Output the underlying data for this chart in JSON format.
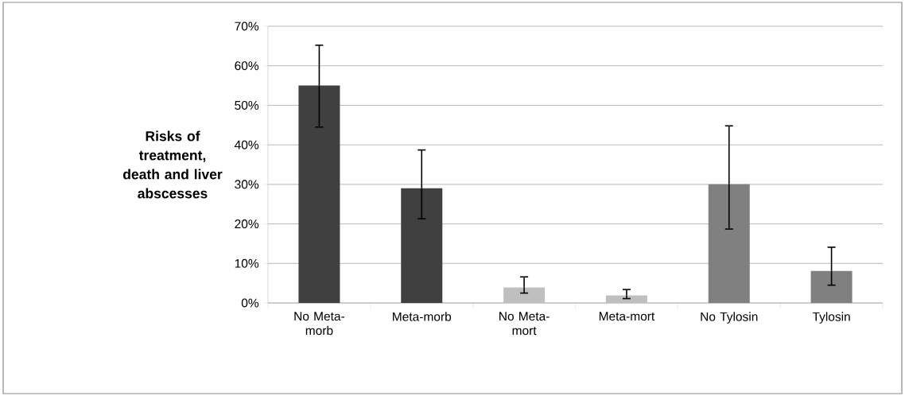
{
  "chart_data": {
    "type": "bar",
    "ylabel": "Risks of treatment, death and liver abscesses",
    "categories": [
      "No Meta-morb",
      "Meta-morb",
      "No Meta-mort",
      "Meta-mort",
      "No Tylosin",
      "Tylosin"
    ],
    "values": [
      55,
      29,
      3.9,
      1.9,
      30,
      8.1
    ],
    "colors": [
      "#404040",
      "#404040",
      "#bfbfbf",
      "#bfbfbf",
      "#808080",
      "#808080"
    ],
    "errors": [
      [
        44.5,
        65.2
      ],
      [
        21.3,
        38.7
      ],
      [
        2.5,
        6.6
      ],
      [
        1.1,
        3.4
      ],
      [
        18.7,
        44.8
      ],
      [
        4.5,
        14.1
      ]
    ],
    "ylim": [
      0,
      70
    ],
    "yticks": [
      {
        "value": 0,
        "label": "0%"
      },
      {
        "value": 10,
        "label": "10%"
      },
      {
        "value": 20,
        "label": "20%"
      },
      {
        "value": 30,
        "label": "30%"
      },
      {
        "value": 40,
        "label": "40%"
      },
      {
        "value": 50,
        "label": "50%"
      },
      {
        "value": 60,
        "label": "60%"
      },
      {
        "value": 70,
        "label": "70%"
      }
    ],
    "grid": "y"
  }
}
